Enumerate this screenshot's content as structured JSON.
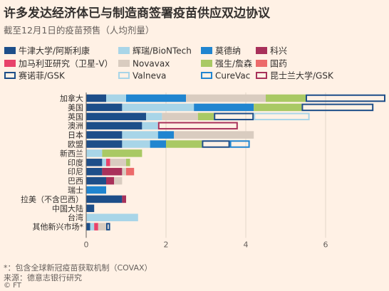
{
  "title": "许多发达经济体已与制造商签署疫苗供应双边协议",
  "subtitle": "截至12月1日的疫苗预售（人均剂量）",
  "footnote": "*：包含全球新冠疫苗获取机制（COVAX）",
  "source": "来源：德意志银行研究",
  "credit": "© FT",
  "chart_data": {
    "type": "bar",
    "orientation": "horizontal",
    "stacked": true,
    "categories": [
      "加拿大",
      "美国",
      "英国",
      "澳洲",
      "日本",
      "欧盟",
      "新西兰",
      "印度",
      "印尼",
      "巴西",
      "瑞士",
      "拉美（不含巴西）",
      "中国大陆",
      "台湾",
      "其他新兴市场*"
    ],
    "xlim": [
      0,
      7.4
    ],
    "xticks": [
      0,
      2,
      4,
      6
    ],
    "grid": true,
    "legend_position": "top",
    "series": [
      {
        "name": "牛津大学/阿斯利康",
        "color": "#1d4e89",
        "style": "solid",
        "values": [
          0.5,
          0.9,
          1.5,
          1.4,
          0.9,
          0.9,
          0,
          0.4,
          0.4,
          0.5,
          0,
          0.9,
          0.2,
          0,
          0.1
        ]
      },
      {
        "name": "辉瑞/BioNTech",
        "color": "#a8d5e8",
        "style": "solid",
        "values": [
          0.5,
          1.8,
          0.4,
          0.4,
          0.9,
          0.7,
          0.4,
          0.1,
          0,
          0,
          0,
          0,
          0,
          1.3,
          0.1
        ]
      },
      {
        "name": "莫德纳",
        "color": "#2085d0",
        "style": "solid",
        "values": [
          1.5,
          1.5,
          0,
          0,
          0.4,
          0.4,
          0,
          0,
          0,
          0,
          0.5,
          0,
          0,
          0,
          0
        ]
      },
      {
        "name": "科兴",
        "color": "#a8315a",
        "style": "solid",
        "values": [
          0,
          0,
          0,
          0,
          0,
          0,
          0,
          0,
          0.5,
          0.2,
          0,
          0.1,
          0,
          0,
          0
        ]
      },
      {
        "name": "加马利亚研究（卫星-V）",
        "color": "#e8426a",
        "style": "solid",
        "values": [
          0,
          0,
          0,
          0,
          0,
          0,
          0,
          0.1,
          0,
          0,
          0,
          0,
          0,
          0,
          0.1
        ]
      },
      {
        "name": "Novavax",
        "color": "#d9ccc0",
        "style": "solid",
        "values": [
          2.0,
          0,
          0.9,
          0,
          2.0,
          0,
          0,
          0.4,
          0.1,
          0.2,
          0,
          0,
          0,
          0,
          0.2
        ]
      },
      {
        "name": "强生/詹森",
        "color": "#a9c964",
        "style": "solid",
        "values": [
          1.0,
          1.2,
          0.4,
          0,
          0,
          0.9,
          1.0,
          0.1,
          0,
          0,
          0,
          0,
          0,
          0,
          0
        ]
      },
      {
        "name": "国药",
        "color": "#ec6a6a",
        "style": "solid",
        "values": [
          0,
          0,
          0,
          0,
          0,
          0,
          0,
          0,
          0.2,
          0,
          0,
          0,
          0,
          0,
          0
        ]
      },
      {
        "name": "赛诺菲/GSK",
        "color": "#1d4e89",
        "style": "outline",
        "values": [
          2.0,
          1.8,
          1.0,
          0,
          0,
          0.7,
          0,
          0,
          0,
          0,
          0,
          0,
          0,
          0,
          0.1
        ]
      },
      {
        "name": "Valneva",
        "color": "#a8d5e8",
        "style": "outline",
        "values": [
          0,
          0,
          1.4,
          0,
          0,
          0,
          0,
          0,
          0,
          0,
          0,
          0,
          0,
          0,
          0
        ]
      },
      {
        "name": "CureVac",
        "color": "#2085d0",
        "style": "outline",
        "values": [
          0,
          0,
          0,
          0,
          0,
          0.5,
          0,
          0,
          0,
          0,
          0,
          0,
          0,
          0,
          0
        ]
      },
      {
        "name": "昆士兰大学/GSK",
        "color": "#a8315a",
        "style": "outline",
        "values": [
          0,
          0,
          0,
          2.0,
          0,
          0,
          0,
          0,
          0,
          0,
          0,
          0,
          0,
          0,
          0
        ]
      }
    ]
  }
}
